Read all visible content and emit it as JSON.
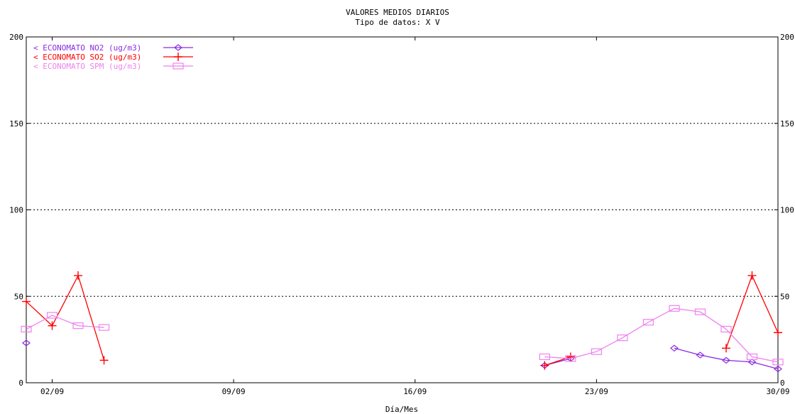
{
  "chart_data": {
    "type": "line",
    "title": "VALORES MEDIOS DIARIOS",
    "subtitle": "Tipo de datos:  X V",
    "xlabel": "Día/Mes",
    "ylabel": "",
    "ylim": [
      0,
      200
    ],
    "yticks": [
      "0",
      "50",
      "100",
      "150",
      "200"
    ],
    "xlim": [
      1,
      30
    ],
    "xticks": [
      {
        "day": 2,
        "label": "02/09"
      },
      {
        "day": 9,
        "label": "09/09"
      },
      {
        "day": 16,
        "label": "16/09"
      },
      {
        "day": 23,
        "label": "23/09"
      },
      {
        "day": 30,
        "label": "30/09"
      }
    ],
    "grid": "horizontal dotted",
    "legend_position": "top-left",
    "series": [
      {
        "name": "< ECONOMATO NO2  (ug/m3)",
        "color": "#8a2be2",
        "marker": "diamond",
        "x": [
          1,
          21,
          22,
          26,
          27,
          28,
          29,
          30
        ],
        "y": [
          23,
          10,
          14,
          20,
          16,
          13,
          12,
          8
        ]
      },
      {
        "name": "< ECONOMATO SO2  (ug/m3)",
        "color": "#ff0000",
        "marker": "plus",
        "x": [
          1,
          2,
          3,
          4,
          21,
          22,
          28,
          29,
          30
        ],
        "y": [
          47,
          33,
          62,
          13,
          10,
          15,
          20,
          62,
          29
        ]
      },
      {
        "name": "< ECONOMATO SPM  (ug/m3)",
        "color": "#ee82ee",
        "marker": "square",
        "x": [
          1,
          2,
          3,
          4,
          21,
          22,
          23,
          24,
          25,
          26,
          27,
          28,
          29,
          30
        ],
        "y": [
          31,
          39,
          33,
          32,
          15,
          14,
          18,
          26,
          35,
          43,
          41,
          31,
          15,
          12
        ]
      }
    ]
  }
}
